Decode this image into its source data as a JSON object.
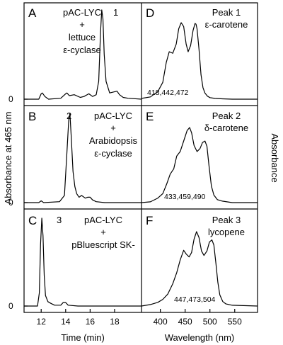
{
  "figure": {
    "ylabel_left": "Absorbance at 465 nm",
    "ylabel_right": "Absorbance",
    "xlabel_left": "Time (min)",
    "xlabel_right": "Wavelength (nm)",
    "zero_label": "0"
  },
  "chart_data": [
    {
      "panel": "A",
      "type": "line",
      "annotation": [
        "pAC-LYC",
        "+",
        "lettuce",
        "ε-cyclase"
      ],
      "peak_label": "1",
      "xlabel": "Time (min)",
      "ylabel": "Absorbance at 465 nm",
      "xlim": [
        10.6,
        20.2
      ],
      "xticks": [
        12,
        14,
        16,
        18
      ],
      "y_baseline": 0,
      "series": [
        {
          "x": [
            10.6,
            11.8,
            12.0,
            12.1,
            12.3,
            12.6,
            13.6,
            14.0,
            14.1,
            14.3,
            14.7,
            15.2,
            15.5,
            15.9,
            16.2,
            16.5,
            16.7,
            16.85,
            16.95,
            17.05,
            17.15,
            17.3,
            17.6,
            17.9,
            18.2,
            18.4,
            18.7,
            19.1,
            20.2
          ],
          "y": [
            0,
            0,
            0.06,
            0.07,
            0.03,
            0,
            0.01,
            0.06,
            0.07,
            0.04,
            0.05,
            0.02,
            0.03,
            0.06,
            0.03,
            0.05,
            0.2,
            0.75,
            1.0,
            0.9,
            0.5,
            0.2,
            0.07,
            0.08,
            0.09,
            0.05,
            0.02,
            0.01,
            0
          ]
        }
      ]
    },
    {
      "panel": "B",
      "type": "line",
      "annotation": [
        "pAC-LYC",
        "+",
        "Arabidopsis",
        "ε-cyclase"
      ],
      "peak_label": "2",
      "xlabel": "Time (min)",
      "ylabel": "Absorbance at 465 nm",
      "xlim": [
        10.6,
        20.2
      ],
      "xticks": [
        12,
        14,
        16,
        18
      ],
      "y_baseline": 0,
      "series": [
        {
          "x": [
            10.6,
            11.8,
            12.0,
            12.2,
            13.5,
            13.9,
            14.1,
            14.25,
            14.35,
            14.45,
            14.6,
            14.75,
            14.9,
            15.1,
            15.3,
            15.6,
            15.8,
            16.0,
            16.2,
            16.5,
            17.2,
            20.2
          ],
          "y": [
            0,
            0,
            0.02,
            0,
            0.01,
            0.08,
            0.55,
            0.92,
            1.0,
            0.75,
            0.35,
            0.18,
            0.1,
            0.06,
            0.08,
            0.05,
            0.06,
            0.06,
            0.03,
            0.01,
            0,
            0
          ]
        }
      ]
    },
    {
      "panel": "C",
      "type": "line",
      "annotation": [
        "pAC-LYC",
        "+",
        "pBluescript SK-"
      ],
      "peak_label": "3",
      "xlabel": "Time (min)",
      "ylabel": "Absorbance at 465 nm",
      "xlim": [
        10.6,
        20.2
      ],
      "xticks": [
        12,
        14,
        16,
        18
      ],
      "y_baseline": 0,
      "series": [
        {
          "x": [
            10.6,
            11.7,
            11.85,
            11.95,
            12.05,
            12.15,
            12.25,
            12.35,
            12.55,
            12.8,
            13.1,
            13.6,
            13.8,
            14.0,
            14.2,
            15.0,
            20.2
          ],
          "y": [
            0,
            0,
            0.15,
            0.7,
            1.0,
            0.8,
            0.35,
            0.12,
            0.05,
            0.03,
            0.01,
            0.01,
            0.04,
            0.04,
            0.01,
            0,
            0
          ]
        }
      ]
    },
    {
      "panel": "D",
      "type": "line",
      "title": "Peak 1",
      "compound": "ε-carotene",
      "maxima_label": "418,442,472",
      "xlabel": "Wavelength (nm)",
      "ylabel": "Absorbance",
      "xlim": [
        362,
        596
      ],
      "xticks": [
        400,
        450,
        500,
        550
      ],
      "series": [
        {
          "x": [
            362,
            380,
            395,
            405,
            412,
            418,
            425,
            432,
            437,
            442,
            447,
            452,
            456,
            461,
            466,
            470,
            472,
            474,
            478,
            482,
            486,
            490,
            495,
            500,
            510,
            525,
            545,
            596
          ],
          "y": [
            0.01,
            0.03,
            0.1,
            0.22,
            0.48,
            0.62,
            0.6,
            0.72,
            0.92,
            1.0,
            0.95,
            0.72,
            0.62,
            0.7,
            0.9,
            0.99,
            0.98,
            0.92,
            0.65,
            0.32,
            0.15,
            0.08,
            0.04,
            0.02,
            0.01,
            0.005,
            0,
            0
          ]
        }
      ]
    },
    {
      "panel": "E",
      "type": "line",
      "title": "Peak 2",
      "compound": "δ-carotene",
      "maxima_label": "433,459,490",
      "xlabel": "Wavelength (nm)",
      "ylabel": "Absorbance",
      "xlim": [
        362,
        596
      ],
      "xticks": [
        400,
        450,
        500,
        550
      ],
      "series": [
        {
          "x": [
            362,
            380,
            395,
            405,
            413,
            420,
            427,
            433,
            440,
            448,
            454,
            459,
            463,
            468,
            474,
            480,
            485,
            490,
            494,
            498,
            503,
            508,
            515,
            525,
            545,
            596
          ],
          "y": [
            0,
            0.01,
            0.06,
            0.12,
            0.25,
            0.38,
            0.45,
            0.62,
            0.68,
            0.84,
            0.96,
            1.0,
            0.93,
            0.76,
            0.68,
            0.72,
            0.8,
            0.82,
            0.75,
            0.5,
            0.22,
            0.1,
            0.04,
            0.02,
            0,
            0
          ]
        }
      ]
    },
    {
      "panel": "F",
      "type": "line",
      "title": "Peak 3",
      "compound": "lycopene",
      "maxima_label": "447,473,504",
      "xlabel": "Wavelength (nm)",
      "ylabel": "Absorbance",
      "xlim": [
        362,
        596
      ],
      "xticks": [
        400,
        450,
        500,
        550
      ],
      "series": [
        {
          "x": [
            362,
            380,
            395,
            405,
            415,
            425,
            433,
            440,
            447,
            452,
            458,
            463,
            468,
            473,
            478,
            483,
            488,
            494,
            499,
            504,
            508,
            512,
            516,
            520,
            526,
            532,
            545,
            596
          ],
          "y": [
            0,
            0.02,
            0.05,
            0.09,
            0.16,
            0.3,
            0.45,
            0.62,
            0.75,
            0.7,
            0.66,
            0.72,
            0.9,
            1.0,
            0.92,
            0.74,
            0.68,
            0.74,
            0.86,
            0.89,
            0.82,
            0.58,
            0.32,
            0.15,
            0.06,
            0.03,
            0.01,
            0
          ]
        }
      ]
    }
  ]
}
